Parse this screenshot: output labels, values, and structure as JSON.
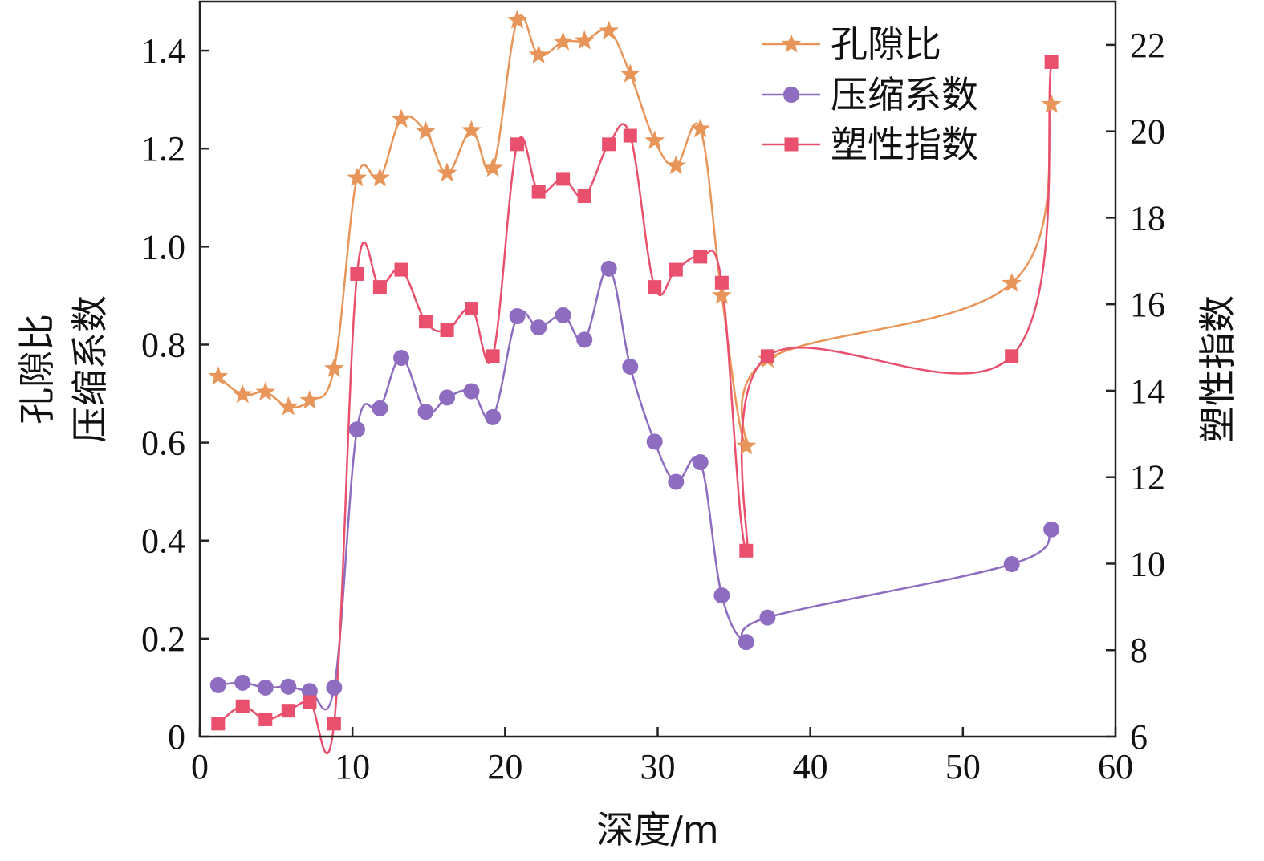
{
  "chart_data": {
    "type": "line",
    "xlabel": "深度/m",
    "ylabel_lines": [
      "孔隙比",
      "压缩系数"
    ],
    "y2label": "塑性指数",
    "xlim": [
      0,
      60
    ],
    "ylim": [
      0,
      1.5
    ],
    "y2lim": [
      6,
      23
    ],
    "x_ticks": [
      0,
      10,
      20,
      30,
      40,
      50,
      60
    ],
    "x_tick_labels": [
      "0",
      "10",
      "20",
      "30",
      "40",
      "50",
      "60"
    ],
    "y_ticks": [
      0,
      0.2,
      0.4,
      0.6,
      0.8,
      1.0,
      1.2,
      1.4
    ],
    "y_tick_labels": [
      "0",
      "0.2",
      "0.4",
      "0.6",
      "0.8",
      "1.0",
      "1.2",
      "1.4"
    ],
    "y2_ticks": [
      6,
      8,
      10,
      12,
      14,
      16,
      18,
      20,
      22
    ],
    "y2_tick_labels": [
      "6",
      "8",
      "10",
      "12",
      "14",
      "16",
      "18",
      "20",
      "22"
    ],
    "legend_position": "top-right",
    "grid": false,
    "series": [
      {
        "name": "孔隙比",
        "axis": "left",
        "marker": "star",
        "color": "#E8955A",
        "x": [
          1.2,
          2.8,
          4.3,
          5.8,
          7.2,
          8.8,
          10.3,
          11.8,
          13.2,
          14.8,
          16.2,
          17.8,
          19.2,
          20.8,
          22.2,
          23.8,
          25.2,
          26.8,
          28.2,
          29.8,
          31.2,
          32.8,
          34.2,
          35.8,
          37.2,
          53.2,
          55.8
        ],
        "y": [
          0.735,
          0.698,
          0.703,
          0.673,
          0.686,
          0.751,
          1.14,
          1.14,
          1.26,
          1.235,
          1.15,
          1.237,
          1.16,
          1.462,
          1.391,
          1.418,
          1.42,
          1.44,
          1.352,
          1.216,
          1.165,
          1.24,
          0.9,
          0.593,
          0.77,
          0.925,
          1.29
        ]
      },
      {
        "name": "压缩系数",
        "axis": "left",
        "marker": "circle",
        "color": "#8E6CC0",
        "x": [
          1.2,
          2.8,
          4.3,
          5.8,
          7.2,
          8.8,
          10.3,
          11.8,
          13.2,
          14.8,
          16.2,
          17.8,
          19.2,
          20.8,
          22.2,
          23.8,
          25.2,
          26.8,
          28.2,
          29.8,
          31.2,
          32.8,
          34.2,
          35.8,
          37.2,
          53.2,
          55.8
        ],
        "y": [
          0.105,
          0.11,
          0.1,
          0.102,
          0.093,
          0.1,
          0.627,
          0.67,
          0.773,
          0.663,
          0.692,
          0.705,
          0.652,
          0.858,
          0.835,
          0.86,
          0.81,
          0.955,
          0.755,
          0.602,
          0.52,
          0.56,
          0.288,
          0.193,
          0.243,
          0.352,
          0.423
        ]
      },
      {
        "name": "塑性指数",
        "axis": "right",
        "marker": "square",
        "color": "#E8506E",
        "x": [
          1.2,
          2.8,
          4.3,
          5.8,
          7.2,
          8.8,
          10.3,
          11.8,
          13.2,
          14.8,
          16.2,
          17.8,
          19.2,
          20.8,
          22.2,
          23.8,
          25.2,
          26.8,
          28.2,
          29.8,
          31.2,
          32.8,
          34.2,
          35.8,
          37.2,
          53.2,
          55.8
        ],
        "y": [
          6.3,
          6.7,
          6.4,
          6.6,
          6.8,
          6.3,
          16.7,
          16.4,
          16.8,
          15.6,
          15.4,
          15.9,
          14.8,
          19.7,
          18.6,
          18.9,
          18.5,
          19.7,
          19.9,
          16.4,
          16.8,
          17.1,
          16.5,
          10.3,
          14.8,
          14.8,
          21.6
        ]
      }
    ]
  }
}
